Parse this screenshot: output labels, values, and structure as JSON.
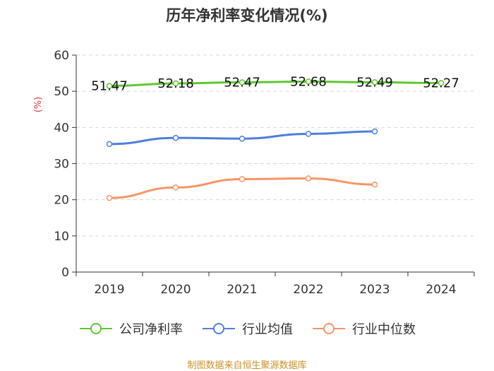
{
  "chart_data": {
    "type": "line",
    "title": "历年净利率变化情况(%)",
    "ylabel": "(%)",
    "xlabel": "",
    "ylim": [
      0,
      60
    ],
    "yticks": [
      0,
      10,
      20,
      30,
      40,
      50,
      60
    ],
    "grid": true,
    "legend_position": "bottom",
    "categories": [
      "2019",
      "2020",
      "2021",
      "2022",
      "2023",
      "2024"
    ],
    "series": [
      {
        "name": "公司净利率",
        "color": "#5fc82f",
        "values": [
          51.47,
          52.18,
          52.47,
          52.68,
          52.49,
          52.27
        ],
        "labels": [
          "51.47",
          "52.18",
          "52.47",
          "52.68",
          "52.49",
          "52.27"
        ]
      },
      {
        "name": "行业均值",
        "color": "#4e7fdb",
        "values": [
          35.4,
          37.1,
          36.9,
          38.2,
          38.9,
          null
        ]
      },
      {
        "name": "行业中位数",
        "color": "#f69564",
        "values": [
          20.5,
          23.4,
          25.7,
          25.9,
          24.2,
          null
        ]
      }
    ],
    "source": "制图数据来自恒生聚源数据库"
  }
}
